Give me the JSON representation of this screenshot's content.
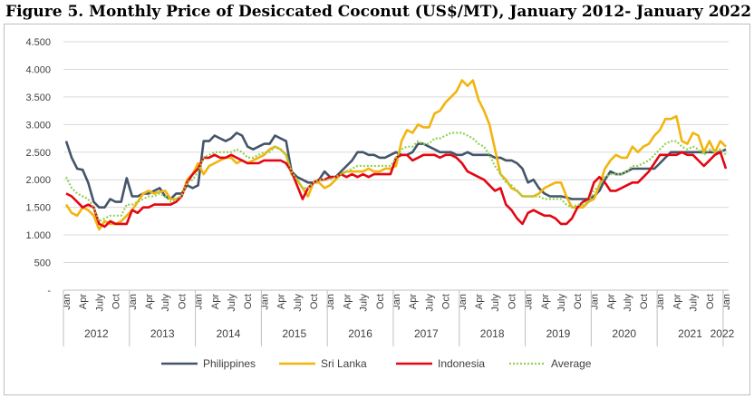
{
  "figure_title": "Figure 5. Monthly Price of Desiccated Coconut (US$/MT), January 2012- January 2022",
  "chart_data": {
    "type": "line",
    "title": "Figure 5. Monthly Price of Desiccated Coconut (US$/MT), January 2012- January 2022",
    "xlabel": "",
    "ylabel": "",
    "ylim": [
      0,
      4500
    ],
    "y_ticks": [
      "-",
      "500",
      "1.000",
      "1.500",
      "2.000",
      "2.500",
      "3.000",
      "3.500",
      "4.000",
      "4.500"
    ],
    "month_labels": [
      "Jan",
      "Apr",
      "July",
      "Oct"
    ],
    "years": [
      "2012",
      "2013",
      "2014",
      "2015",
      "2016",
      "2017",
      "2018",
      "2019",
      "2020",
      "2021",
      "2022"
    ],
    "grid": "horizontal",
    "legend_position": "bottom",
    "series": [
      {
        "name": "Philippines",
        "color": "#44546A",
        "dash": "solid",
        "values": [
          2700,
          2400,
          2200,
          2180,
          1950,
          1600,
          1500,
          1500,
          1650,
          1600,
          1600,
          2030,
          1700,
          1700,
          1750,
          1750,
          1800,
          1850,
          1700,
          1650,
          1750,
          1750,
          1900,
          1850,
          1900,
          2700,
          2700,
          2800,
          2750,
          2700,
          2750,
          2850,
          2800,
          2600,
          2550,
          2600,
          2650,
          2650,
          2800,
          2750,
          2700,
          2150,
          2050,
          2000,
          1950,
          1950,
          2000,
          2150,
          2050,
          2050,
          2150,
          2250,
          2350,
          2500,
          2500,
          2450,
          2450,
          2400,
          2400,
          2450,
          2500,
          2450,
          2450,
          2500,
          2650,
          2650,
          2600,
          2550,
          2500,
          2500,
          2500,
          2450,
          2450,
          2500,
          2450,
          2450,
          2450,
          2450,
          2400,
          2400,
          2350,
          2350,
          2300,
          2200,
          1950,
          2000,
          1850,
          1750,
          1700,
          1700,
          1700,
          1680,
          1650,
          1650,
          1650,
          1650,
          1700,
          1800,
          2000,
          2150,
          2100,
          2100,
          2150,
          2200,
          2200,
          2200,
          2200,
          2200,
          2300,
          2400,
          2500,
          2500,
          2500,
          2500,
          2500,
          2500,
          2500,
          2500,
          2500,
          2500,
          2550
        ]
      },
      {
        "name": "Sri Lanka",
        "color": "#F2B40F",
        "dash": "solid",
        "values": [
          1550,
          1400,
          1350,
          1500,
          1450,
          1350,
          1100,
          1250,
          1200,
          1200,
          1250,
          1350,
          1450,
          1600,
          1750,
          1800,
          1750,
          1780,
          1800,
          1650,
          1650,
          1700,
          2000,
          2100,
          2300,
          2100,
          2250,
          2300,
          2350,
          2400,
          2400,
          2300,
          2350,
          2300,
          2350,
          2400,
          2450,
          2550,
          2600,
          2550,
          2450,
          2100,
          2000,
          1850,
          1700,
          1950,
          1950,
          1850,
          1900,
          2000,
          2100,
          2150,
          2150,
          2150,
          2150,
          2200,
          2150,
          2150,
          2200,
          2200,
          2250,
          2700,
          2900,
          2850,
          3000,
          2950,
          2950,
          3200,
          3250,
          3400,
          3500,
          3600,
          3800,
          3700,
          3800,
          3450,
          3250,
          3000,
          2550,
          2100,
          2000,
          1850,
          1800,
          1700,
          1700,
          1700,
          1750,
          1850,
          1900,
          1950,
          1950,
          1700,
          1500,
          1500,
          1500,
          1600,
          1650,
          1900,
          2200,
          2350,
          2450,
          2400,
          2400,
          2600,
          2500,
          2600,
          2650,
          2800,
          2900,
          3100,
          3100,
          3150,
          2700,
          2650,
          2850,
          2800,
          2500,
          2700,
          2500,
          2700,
          2600
        ]
      },
      {
        "name": "Indonesia",
        "color": "#E30613",
        "dash": "solid",
        "values": [
          1750,
          1700,
          1600,
          1500,
          1550,
          1500,
          1200,
          1150,
          1250,
          1200,
          1200,
          1200,
          1450,
          1400,
          1500,
          1500,
          1550,
          1550,
          1550,
          1550,
          1600,
          1700,
          1950,
          2100,
          2200,
          2400,
          2400,
          2450,
          2400,
          2400,
          2450,
          2400,
          2350,
          2300,
          2300,
          2300,
          2350,
          2350,
          2350,
          2350,
          2300,
          2150,
          1900,
          1650,
          1850,
          1950,
          2000,
          2000,
          2050,
          2050,
          2100,
          2050,
          2100,
          2050,
          2100,
          2050,
          2100,
          2100,
          2100,
          2100,
          2400,
          2450,
          2450,
          2350,
          2400,
          2450,
          2450,
          2450,
          2400,
          2450,
          2450,
          2400,
          2300,
          2150,
          2100,
          2050,
          2000,
          1900,
          1800,
          1850,
          1550,
          1450,
          1300,
          1200,
          1400,
          1450,
          1400,
          1350,
          1350,
          1300,
          1200,
          1200,
          1300,
          1500,
          1600,
          1650,
          1950,
          2050,
          1950,
          1800,
          1800,
          1850,
          1900,
          1950,
          1950,
          2050,
          2150,
          2300,
          2450,
          2450,
          2450,
          2450,
          2500,
          2450,
          2450,
          2350,
          2250,
          2350,
          2450,
          2500,
          2200
        ]
      },
      {
        "name": "Average",
        "color": "#92D050",
        "dash": "dotted",
        "values": [
          2050,
          1850,
          1750,
          1700,
          1650,
          1500,
          1250,
          1300,
          1350,
          1350,
          1350,
          1550,
          1550,
          1600,
          1650,
          1700,
          1700,
          1750,
          1700,
          1600,
          1650,
          1700,
          1950,
          2000,
          2150,
          2400,
          2450,
          2500,
          2500,
          2500,
          2500,
          2550,
          2500,
          2400,
          2400,
          2450,
          2500,
          2500,
          2600,
          2550,
          2450,
          2150,
          2000,
          1850,
          1850,
          1950,
          2000,
          2000,
          2000,
          2050,
          2100,
          2150,
          2200,
          2250,
          2250,
          2250,
          2250,
          2250,
          2250,
          2250,
          2400,
          2550,
          2600,
          2600,
          2700,
          2650,
          2650,
          2750,
          2750,
          2800,
          2850,
          2850,
          2850,
          2800,
          2750,
          2650,
          2600,
          2450,
          2250,
          2100,
          1950,
          1900,
          1800,
          1700,
          1700,
          1700,
          1700,
          1650,
          1650,
          1650,
          1650,
          1550,
          1500,
          1550,
          1550,
          1600,
          1800,
          1900,
          2050,
          2100,
          2100,
          2100,
          2150,
          2250,
          2250,
          2300,
          2350,
          2450,
          2550,
          2650,
          2700,
          2700,
          2600,
          2550,
          2600,
          2550,
          2450,
          2550,
          2500,
          2550,
          2450
        ]
      }
    ]
  }
}
